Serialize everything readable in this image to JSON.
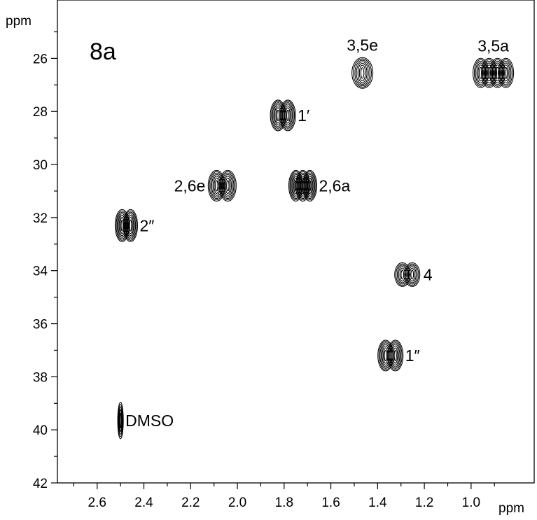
{
  "chart_data": {
    "type": "scatter",
    "subtype": "2D NMR contour plot",
    "panel_label": "8a",
    "x_unit": "ppm",
    "y_unit": "ppm",
    "x_axis": {
      "range": [
        2.77,
        0.73
      ],
      "reversed": true,
      "ticks": [
        "2.6",
        "2.4",
        "2.2",
        "2.0",
        "1.8",
        "1.6",
        "1.4",
        "1.2",
        "1.0"
      ],
      "tick_values": [
        2.6,
        2.4,
        2.2,
        2.0,
        1.8,
        1.6,
        1.4,
        1.2,
        1.0
      ]
    },
    "y_axis": {
      "range": [
        23.8,
        42.0
      ],
      "reversed": true,
      "ticks": [
        "26",
        "28",
        "30",
        "32",
        "34",
        "36",
        "38",
        "40",
        "42"
      ],
      "tick_values": [
        26,
        28,
        30,
        32,
        34,
        36,
        38,
        40,
        42
      ]
    },
    "grid": false,
    "points": [
      {
        "label": "3,5e",
        "x": 1.465,
        "y": 26.55,
        "label_pos": "above"
      },
      {
        "label": "3,5a",
        "x": 0.905,
        "y": 26.55,
        "label_pos": "above"
      },
      {
        "label": "1′",
        "x": 1.805,
        "y": 28.15,
        "label_pos": "right"
      },
      {
        "label": "2,6e",
        "x": 2.065,
        "y": 30.8,
        "label_pos": "left"
      },
      {
        "label": "2,6a",
        "x": 1.72,
        "y": 30.8,
        "label_pos": "right"
      },
      {
        "label": "2″",
        "x": 2.475,
        "y": 32.3,
        "label_pos": "right"
      },
      {
        "label": "4",
        "x": 1.27,
        "y": 34.15,
        "label_pos": "right"
      },
      {
        "label": "1″",
        "x": 1.345,
        "y": 37.2,
        "label_pos": "right"
      },
      {
        "label": "DMSO",
        "x": 2.5,
        "y": 39.65,
        "label_pos": "right"
      }
    ]
  }
}
